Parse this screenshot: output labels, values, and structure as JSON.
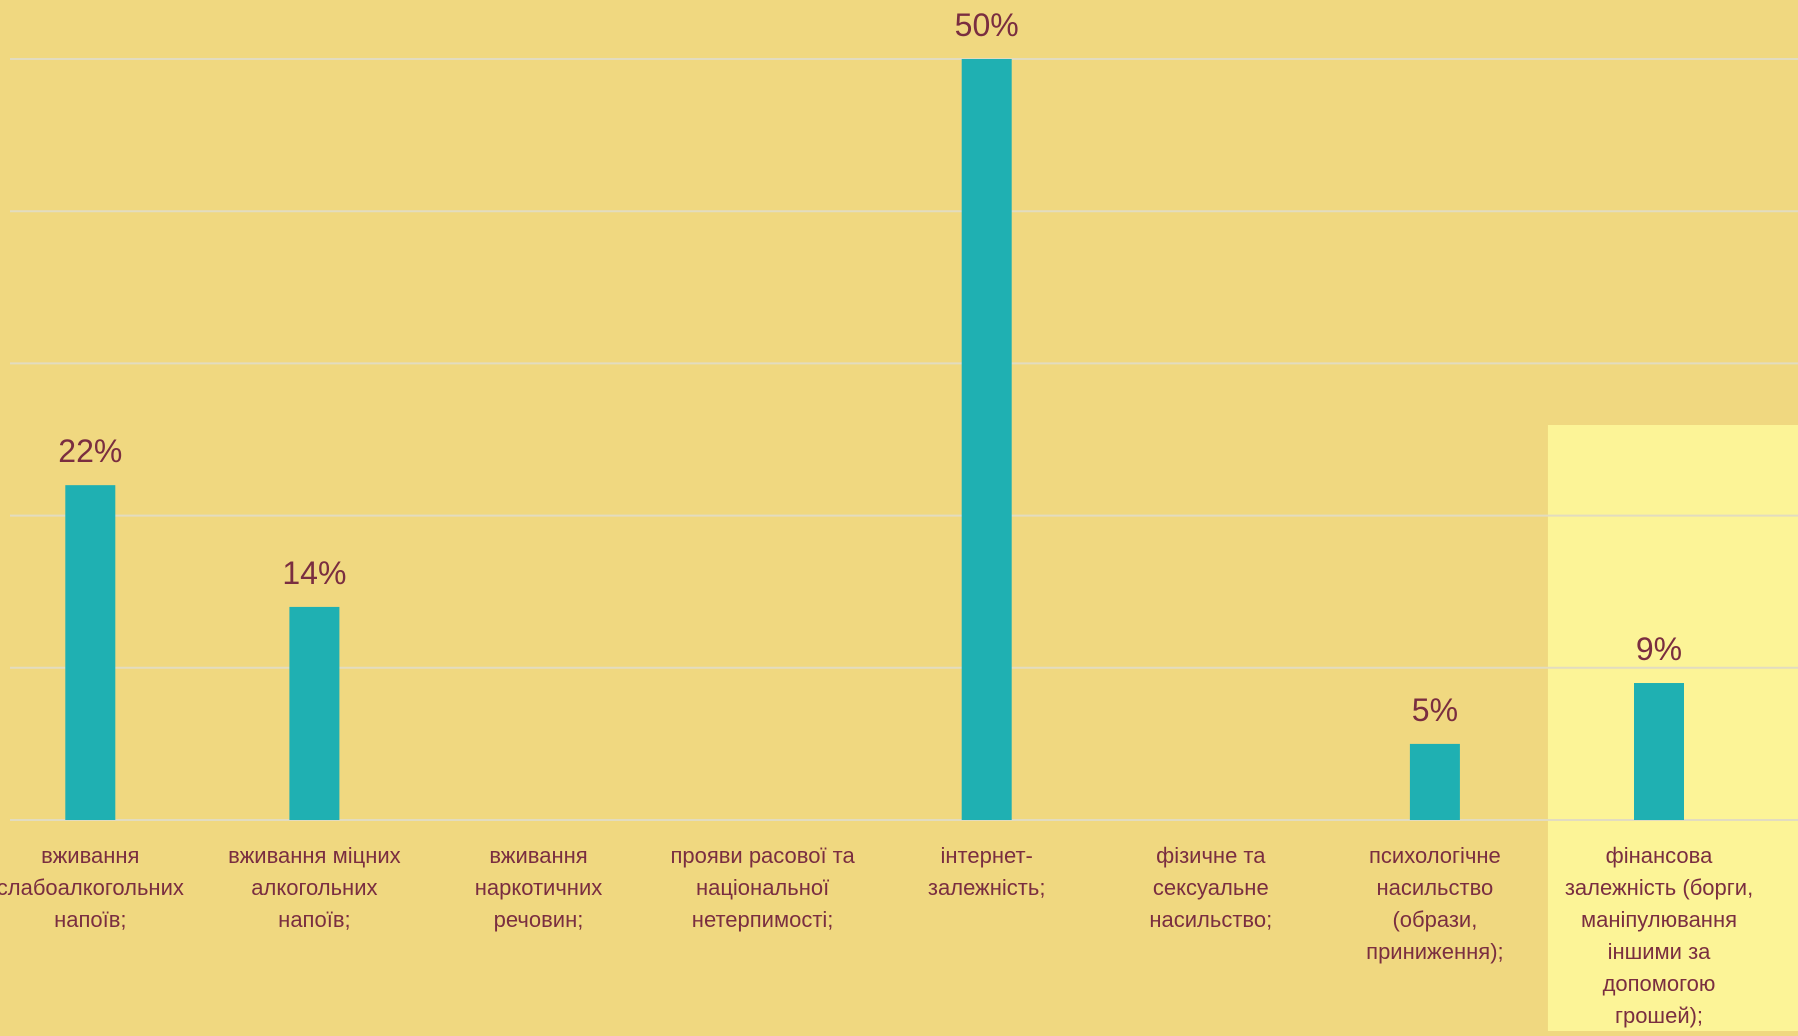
{
  "colors": {
    "background": "#f0d880",
    "highlight": "#fcf497",
    "bar": "#1fb0b2",
    "text": "#7a2e40",
    "grid": "#e2dcc0"
  },
  "chart_data": {
    "type": "bar",
    "title": "",
    "xlabel": "",
    "ylabel": "",
    "ylim": [
      0,
      50
    ],
    "grid": true,
    "legend": "none",
    "highlighted_category_index": 7,
    "categories": [
      [
        "вживання",
        "слабоалкогольних",
        "напоїв;"
      ],
      [
        "вживання міцних",
        "алкогольних",
        "напоїв;"
      ],
      [
        "вживання",
        "наркотичних",
        "речовин;"
      ],
      [
        "прояви расової та",
        "національної",
        "нетерпимості;"
      ],
      [
        "інтернет-",
        "залежність;"
      ],
      [
        "фізичне та",
        "сексуальне",
        "насильство;"
      ],
      [
        "психологічне",
        "насильство",
        "(образи,",
        "приниження);"
      ],
      [
        "фінансова",
        "залежність (борги,",
        "маніпулювання",
        "іншими за",
        "допомогою",
        "грошей);"
      ]
    ],
    "values": [
      22,
      14,
      0,
      0,
      50,
      0,
      5,
      9
    ],
    "data_labels": [
      "22%",
      "14%",
      "",
      "",
      "50%",
      "",
      "5%",
      "9%"
    ]
  }
}
